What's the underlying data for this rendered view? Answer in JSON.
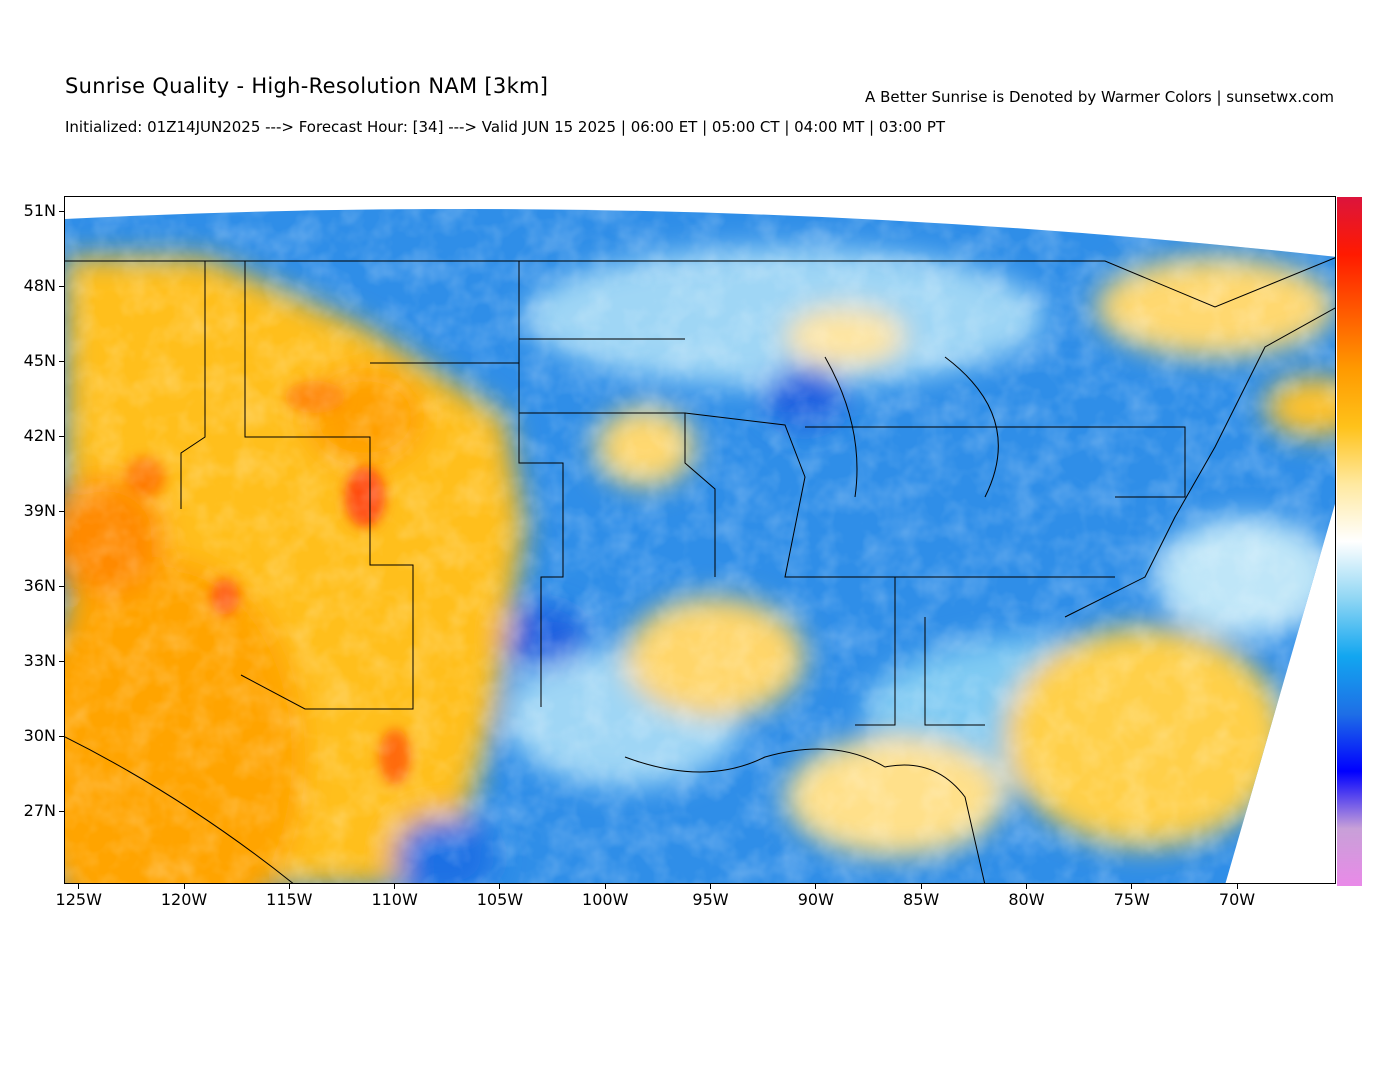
{
  "header": {
    "title": "Sunrise Quality - High-Resolution NAM [3km]",
    "subtitle": "Initialized: 01Z14JUN2025 ---> Forecast Hour: [34] ---> Valid JUN 15 2025 | 06:00 ET | 05:00 CT | 04:00 MT | 03:00 PT",
    "tagline": "A Better Sunrise is Denoted by Warmer Colors | sunsetwx.com"
  },
  "map": {
    "lon_range": [
      -125.7,
      -65.3
    ],
    "lat_range": [
      24.1,
      51.6
    ],
    "lon_ticks": [
      {
        "value": -125,
        "label": "125W"
      },
      {
        "value": -120,
        "label": "120W"
      },
      {
        "value": -115,
        "label": "115W"
      },
      {
        "value": -110,
        "label": "110W"
      },
      {
        "value": -105,
        "label": "105W"
      },
      {
        "value": -100,
        "label": "100W"
      },
      {
        "value": -95,
        "label": "95W"
      },
      {
        "value": -90,
        "label": "90W"
      },
      {
        "value": -85,
        "label": "85W"
      },
      {
        "value": -80,
        "label": "80W"
      },
      {
        "value": -75,
        "label": "75W"
      },
      {
        "value": -70,
        "label": "70W"
      }
    ],
    "lat_ticks": [
      {
        "value": 51,
        "label": "51N"
      },
      {
        "value": 48,
        "label": "48N"
      },
      {
        "value": 45,
        "label": "45N"
      },
      {
        "value": 42,
        "label": "42N"
      },
      {
        "value": 39,
        "label": "39N"
      },
      {
        "value": 36,
        "label": "36N"
      },
      {
        "value": 33,
        "label": "33N"
      },
      {
        "value": 30,
        "label": "30N"
      },
      {
        "value": 27,
        "label": "27N"
      }
    ],
    "colors": {
      "low": "#e98ae8",
      "blue": "#1f7de6",
      "light_blue": "#6fc8f2",
      "white": "#ffffff",
      "yellow": "#ffd04a",
      "orange": "#ffa600",
      "red": "#e21a3a"
    },
    "colorbar": [
      "#e98ae8",
      "#c8a0d8",
      "#0000ff",
      "#1e6fe6",
      "#12a6f0",
      "#8fd6f4",
      "#ffffff",
      "#ffe9a0",
      "#ffc21a",
      "#ff9a00",
      "#ff5a00",
      "#ff1a00",
      "#dc143c"
    ]
  }
}
